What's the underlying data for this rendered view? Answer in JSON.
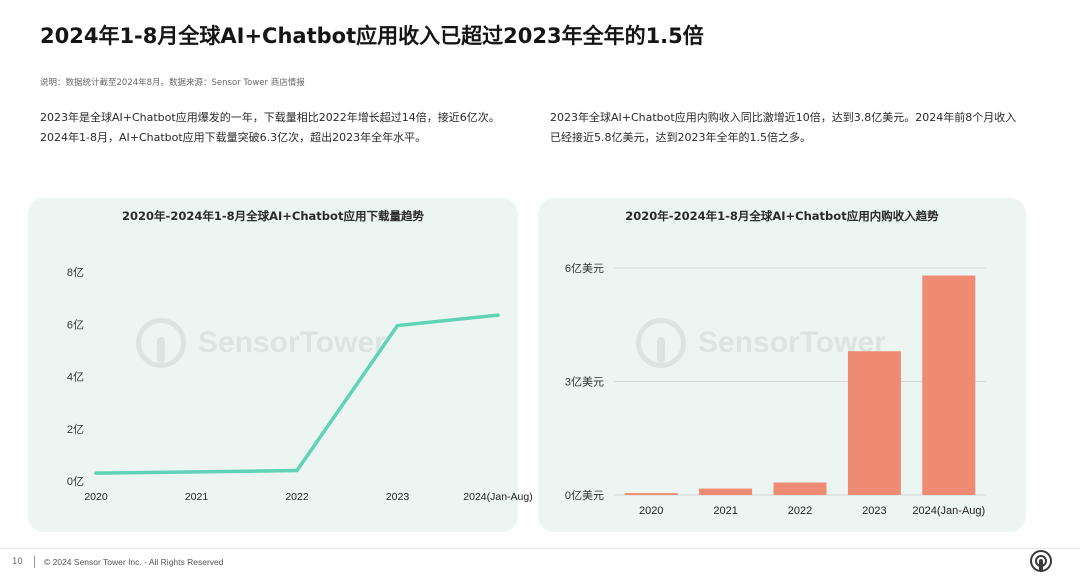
{
  "header": {
    "title": "2024年1-8月全球AI+Chatbot应用收入已超过2023年全年的1.5倍",
    "source_note": "说明：数据统计截至2024年8月。数据来源：Sensor Tower 商店情报"
  },
  "paragraphs": {
    "left": "2023年是全球AI+Chatbot应用爆发的一年，下载量相比2022年增长超过14倍，接近6亿次。2024年1-8月，AI+Chatbot应用下载量突破6.3亿次，超出2023年全年水平。",
    "right": "2023年全球AI+Chatbot应用内购收入同比激增近10倍，达到3.8亿美元。2024年前8个月收入已经接近5.8亿美元，达到2023年全年的1.5倍之多。"
  },
  "watermark": "SensorTower",
  "footer": {
    "page_number": "10",
    "copyright": "© 2024 Sensor Tower Inc. - All Rights Reserved"
  },
  "colors": {
    "line": "#5fd3b3",
    "bar": "#ef8b72",
    "panel": "#ecf5f1",
    "grid": "#d3d8d6"
  },
  "chart_data": [
    {
      "type": "line",
      "title": "2020年-2024年1-8月全球AI+Chatbot应用下载量趋势",
      "xlabel": "",
      "ylabel": "",
      "categories": [
        "2020",
        "2021",
        "2022",
        "2023",
        "2024(Jan-Aug)"
      ],
      "values": [
        0.3,
        0.35,
        0.4,
        5.95,
        6.35
      ],
      "ylim": [
        0,
        8
      ],
      "y_ticks": [
        0,
        2,
        4,
        6,
        8
      ],
      "y_tick_labels": [
        "0亿",
        "2亿",
        "4亿",
        "6亿",
        "8亿"
      ],
      "grid": false
    },
    {
      "type": "bar",
      "title": "2020年-2024年1-8月全球AI+Chatbot应用内购收入趋势",
      "xlabel": "",
      "ylabel": "",
      "categories": [
        "2020",
        "2021",
        "2022",
        "2023",
        "2024(Jan-Aug)"
      ],
      "values": [
        0.05,
        0.17,
        0.33,
        3.8,
        5.8
      ],
      "ylim": [
        0,
        6
      ],
      "y_ticks": [
        0,
        3,
        6
      ],
      "y_tick_labels": [
        "0亿美元",
        "3亿美元",
        "6亿美元"
      ],
      "grid": true
    }
  ]
}
